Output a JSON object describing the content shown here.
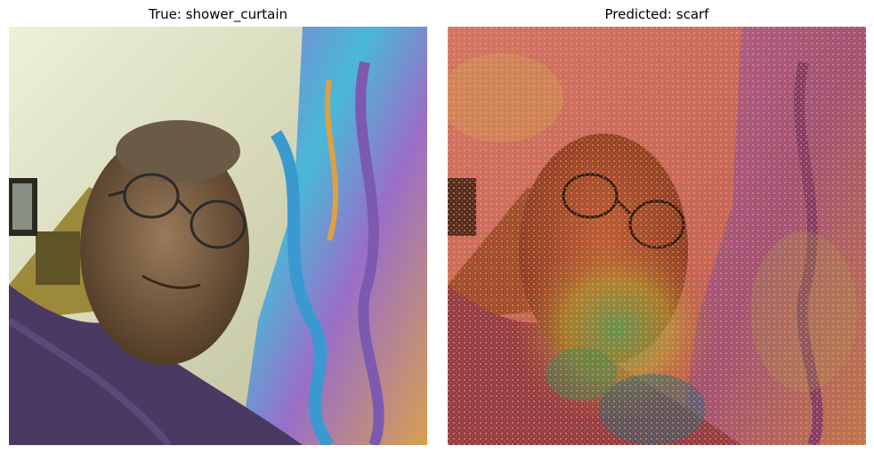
{
  "panels": [
    {
      "title": "True: shower_curtain"
    },
    {
      "title": "Predicted: scarf"
    }
  ]
}
